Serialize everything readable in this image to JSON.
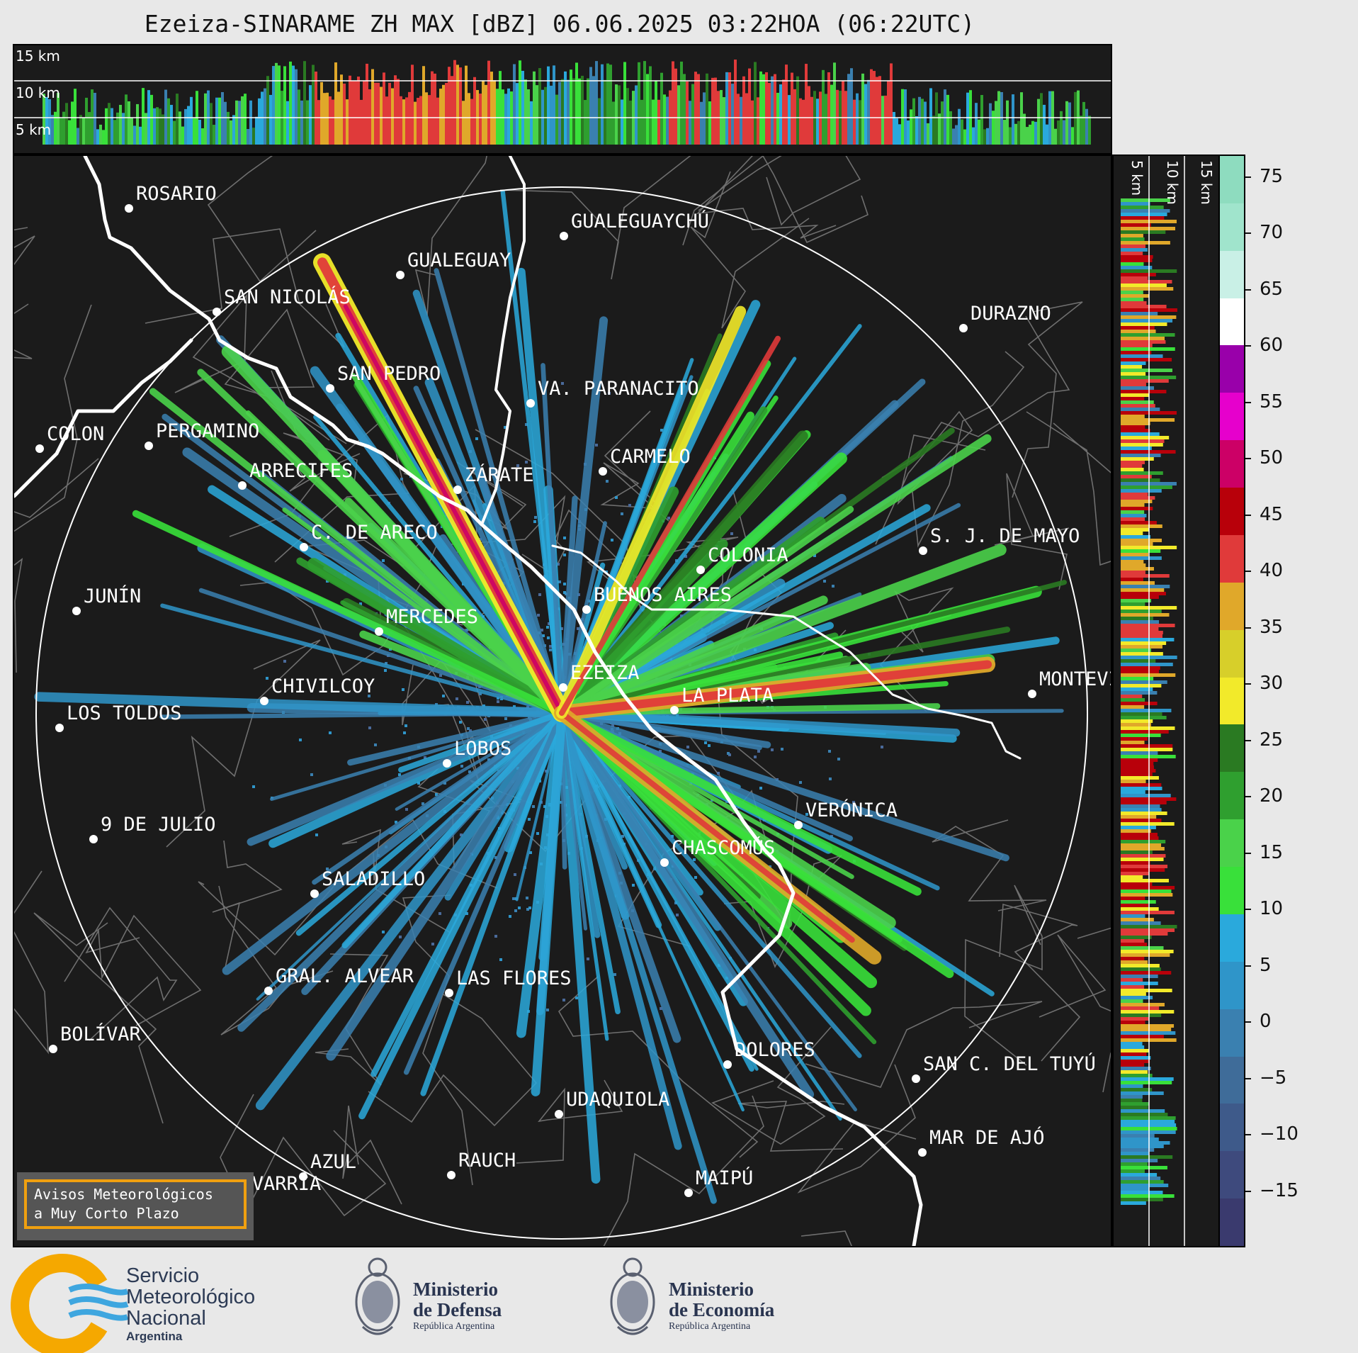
{
  "title": "Ezeiza-SINARAME ZH MAX [dBZ] 06.06.2025 03:22HOA (06:22UTC)",
  "height_labels": [
    "15 km",
    "10 km",
    "5 km"
  ],
  "side_height_labels": [
    "5 km",
    "10 km",
    "15 km"
  ],
  "colorbar": {
    "ticks": [
      "75",
      "70",
      "65",
      "60",
      "55",
      "50",
      "45",
      "40",
      "35",
      "30",
      "25",
      "20",
      "15",
      "10",
      "5",
      "0",
      "−5",
      "−10",
      "−15"
    ],
    "value_range": [
      -20,
      77
    ],
    "colors": [
      "#3a3a6e",
      "#3e4a7d",
      "#3e5a8a",
      "#3f6c99",
      "#3a80b0",
      "#2f95c9",
      "#2aa9dc",
      "#39e03a",
      "#4ad24a",
      "#2f9f2f",
      "#2a7a22",
      "#f2ea2a",
      "#d7cf2a",
      "#e0a82a",
      "#e03a3a",
      "#b8000a",
      "#cc0066",
      "#e600cc",
      "#9900aa",
      "#ffffff",
      "#c9f0e6",
      "#a0e4cc",
      "#8edcbf"
    ]
  },
  "warning_box": {
    "line1": "Avisos Meteorológicos",
    "line2": "a Muy Corto Plazo"
  },
  "cities": [
    {
      "name": "ROSARIO"
    },
    {
      "name": "GUALEGUAYCHÚ"
    },
    {
      "name": "GUALEGUAY"
    },
    {
      "name": "SAN NICOLÁS"
    },
    {
      "name": "DURAZNO"
    },
    {
      "name": "SAN PEDRO"
    },
    {
      "name": "VA. PARANACITO"
    },
    {
      "name": "COLON"
    },
    {
      "name": "PERGAMINO"
    },
    {
      "name": "CARMELO"
    },
    {
      "name": "ARRECIFES"
    },
    {
      "name": "ZÁRATE"
    },
    {
      "name": "C. DE ARECO"
    },
    {
      "name": "S. J. DE MAYO"
    },
    {
      "name": "COLONIA"
    },
    {
      "name": "JUNÍN"
    },
    {
      "name": "BUENOS AIRES"
    },
    {
      "name": "MERCEDES"
    },
    {
      "name": "EZEIZA"
    },
    {
      "name": "MONTEVIDEO"
    },
    {
      "name": "CHIVILCOY"
    },
    {
      "name": "LA PLATA"
    },
    {
      "name": "LOS TOLDOS"
    },
    {
      "name": "LOBOS"
    },
    {
      "name": "VERÓNICA"
    },
    {
      "name": "9 DE JULIO"
    },
    {
      "name": "CHASCOMÚS"
    },
    {
      "name": "SALADILLO"
    },
    {
      "name": "GRAL. ALVEAR"
    },
    {
      "name": "LAS FLORES"
    },
    {
      "name": "BOLÍVAR"
    },
    {
      "name": "DOLORES"
    },
    {
      "name": "SAN C. DEL TUYÚ"
    },
    {
      "name": "UDAQUIOLA"
    },
    {
      "name": "MAR DE AJÓ"
    },
    {
      "name": "AZUL"
    },
    {
      "name": "RAUCH"
    },
    {
      "name": "MAIPÚ"
    },
    {
      "name": "OLAVARRÍA"
    }
  ],
  "logos": {
    "smn": {
      "line1": "Servicio",
      "line2": "Meteorológico",
      "line3": "Nacional",
      "line4": "Argentina"
    },
    "defensa": {
      "line1": "Ministerio",
      "line2": "de Defensa",
      "line3": "República Argentina"
    },
    "economia": {
      "line1": "Ministerio",
      "line2": "de Economía",
      "line3": "República Argentina"
    }
  }
}
